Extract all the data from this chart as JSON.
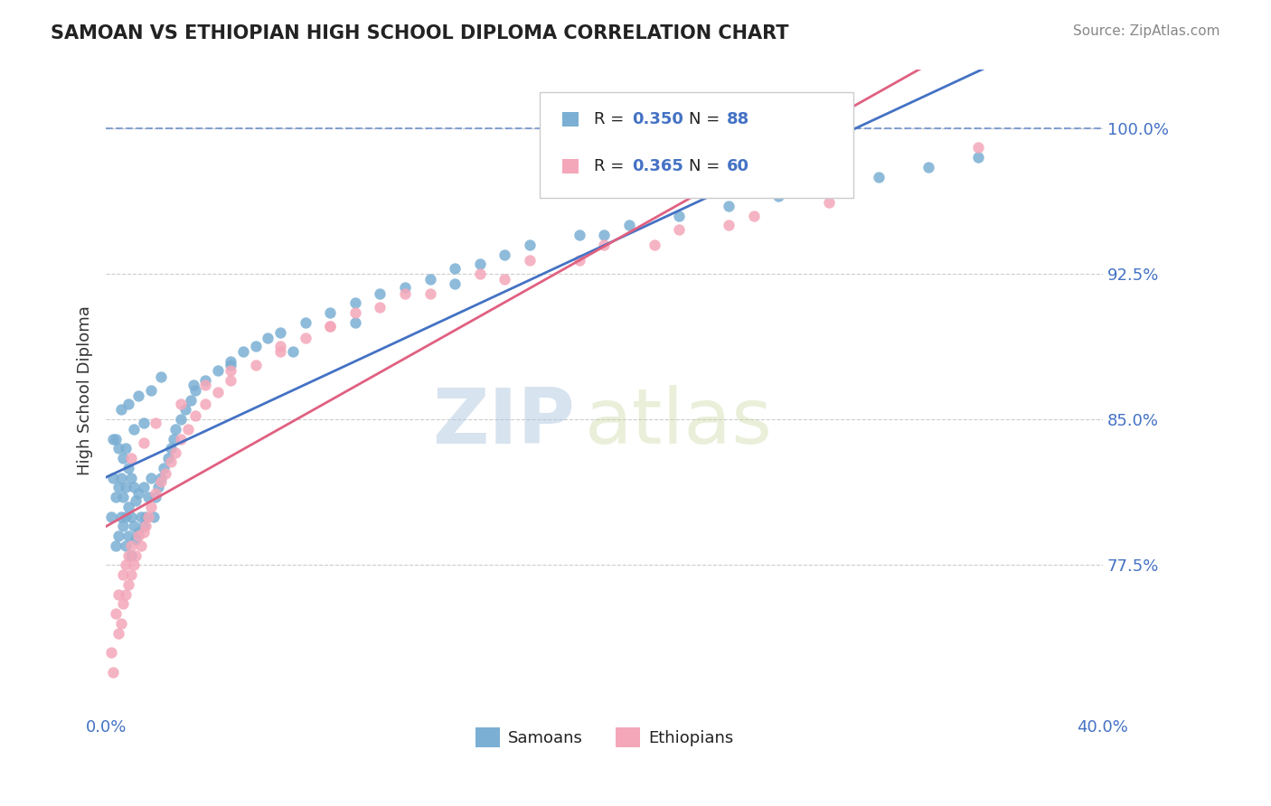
{
  "title": "SAMOAN VS ETHIOPIAN HIGH SCHOOL DIPLOMA CORRELATION CHART",
  "source_text": "Source: ZipAtlas.com",
  "ylabel": "High School Diploma",
  "xlim": [
    0.0,
    0.4
  ],
  "ylim": [
    0.7,
    1.03
  ],
  "yticks": [
    0.775,
    0.85,
    0.925,
    1.0
  ],
  "ytick_labels": [
    "77.5%",
    "85.0%",
    "92.5%",
    "100.0%"
  ],
  "legend_label_samoan": "Samoans",
  "legend_label_ethiopian": "Ethiopians",
  "color_samoan": "#7bafd4",
  "color_ethiopian": "#f4a7b9",
  "color_trend_samoan": "#4472c4",
  "color_trend_ethiopian": "#e06080",
  "color_axis_labels": "#4472c4",
  "watermark_zip": "ZIP",
  "watermark_atlas": "atlas",
  "background_color": "#ffffff",
  "samoan_x": [
    0.002,
    0.003,
    0.003,
    0.004,
    0.004,
    0.005,
    0.005,
    0.005,
    0.006,
    0.006,
    0.007,
    0.007,
    0.007,
    0.008,
    0.008,
    0.008,
    0.009,
    0.009,
    0.009,
    0.01,
    0.01,
    0.01,
    0.011,
    0.011,
    0.012,
    0.012,
    0.013,
    0.013,
    0.014,
    0.015,
    0.015,
    0.016,
    0.017,
    0.018,
    0.019,
    0.02,
    0.021,
    0.022,
    0.023,
    0.025,
    0.026,
    0.027,
    0.028,
    0.03,
    0.032,
    0.034,
    0.036,
    0.04,
    0.045,
    0.05,
    0.055,
    0.06,
    0.065,
    0.07,
    0.08,
    0.09,
    0.1,
    0.11,
    0.12,
    0.13,
    0.14,
    0.15,
    0.16,
    0.17,
    0.19,
    0.21,
    0.23,
    0.25,
    0.27,
    0.29,
    0.31,
    0.33,
    0.35,
    0.004,
    0.006,
    0.008,
    0.009,
    0.011,
    0.013,
    0.015,
    0.018,
    0.022,
    0.035,
    0.05,
    0.075,
    0.1,
    0.14,
    0.2
  ],
  "samoan_y": [
    0.8,
    0.82,
    0.84,
    0.785,
    0.81,
    0.79,
    0.815,
    0.835,
    0.8,
    0.82,
    0.795,
    0.81,
    0.83,
    0.785,
    0.8,
    0.815,
    0.79,
    0.805,
    0.825,
    0.78,
    0.8,
    0.82,
    0.795,
    0.815,
    0.788,
    0.808,
    0.792,
    0.812,
    0.8,
    0.795,
    0.815,
    0.8,
    0.81,
    0.82,
    0.8,
    0.81,
    0.815,
    0.82,
    0.825,
    0.83,
    0.835,
    0.84,
    0.845,
    0.85,
    0.855,
    0.86,
    0.865,
    0.87,
    0.875,
    0.88,
    0.885,
    0.888,
    0.892,
    0.895,
    0.9,
    0.905,
    0.91,
    0.915,
    0.918,
    0.922,
    0.928,
    0.93,
    0.935,
    0.94,
    0.945,
    0.95,
    0.955,
    0.96,
    0.965,
    0.97,
    0.975,
    0.98,
    0.985,
    0.84,
    0.855,
    0.835,
    0.858,
    0.845,
    0.862,
    0.848,
    0.865,
    0.872,
    0.868,
    0.878,
    0.885,
    0.9,
    0.92,
    0.945
  ],
  "ethiopian_x": [
    0.002,
    0.003,
    0.004,
    0.005,
    0.005,
    0.006,
    0.007,
    0.007,
    0.008,
    0.008,
    0.009,
    0.009,
    0.01,
    0.01,
    0.011,
    0.012,
    0.013,
    0.014,
    0.015,
    0.016,
    0.017,
    0.018,
    0.02,
    0.022,
    0.024,
    0.026,
    0.028,
    0.03,
    0.033,
    0.036,
    0.04,
    0.045,
    0.05,
    0.06,
    0.07,
    0.08,
    0.09,
    0.1,
    0.12,
    0.15,
    0.17,
    0.2,
    0.23,
    0.26,
    0.29,
    0.01,
    0.015,
    0.02,
    0.03,
    0.04,
    0.05,
    0.07,
    0.09,
    0.11,
    0.13,
    0.16,
    0.19,
    0.22,
    0.25,
    0.35
  ],
  "ethiopian_y": [
    0.73,
    0.72,
    0.75,
    0.74,
    0.76,
    0.745,
    0.755,
    0.77,
    0.76,
    0.775,
    0.765,
    0.78,
    0.77,
    0.785,
    0.775,
    0.78,
    0.79,
    0.785,
    0.792,
    0.795,
    0.8,
    0.805,
    0.812,
    0.818,
    0.822,
    0.828,
    0.833,
    0.84,
    0.845,
    0.852,
    0.858,
    0.864,
    0.87,
    0.878,
    0.885,
    0.892,
    0.898,
    0.905,
    0.915,
    0.925,
    0.932,
    0.94,
    0.948,
    0.955,
    0.962,
    0.83,
    0.838,
    0.848,
    0.858,
    0.868,
    0.875,
    0.888,
    0.898,
    0.908,
    0.915,
    0.922,
    0.932,
    0.94,
    0.95,
    0.99
  ]
}
